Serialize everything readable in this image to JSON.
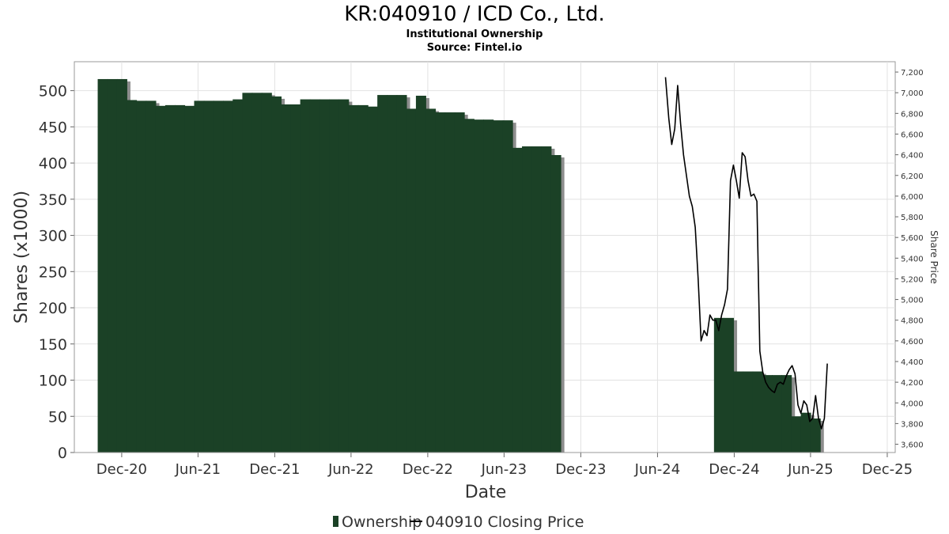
{
  "chart_data": {
    "type": "bar",
    "title": "KR:040910 / ICD Co., Ltd.",
    "subtitle": "Institutional Ownership",
    "source": "Source: Fintel.io",
    "xlabel": "Date",
    "ylabel": "Shares (x1000)",
    "y2label": "Share Price",
    "ylim": [
      0,
      540
    ],
    "y2lim": [
      3520,
      7300
    ],
    "yticks": [
      0,
      50,
      100,
      150,
      200,
      250,
      300,
      350,
      400,
      450,
      500
    ],
    "y2ticks": [
      "3,600",
      "3,800",
      "4,000",
      "4,200",
      "4,400",
      "4,600",
      "4,800",
      "5,000",
      "5,200",
      "5,400",
      "5,600",
      "5,800",
      "6,000",
      "6,200",
      "6,400",
      "6,600",
      "6,800",
      "7,000",
      "7,200"
    ],
    "xlim": [
      "2020-08-10",
      "2025-12-20"
    ],
    "xticks": [
      {
        "date": "2020-12-01",
        "label": "Dec-20"
      },
      {
        "date": "2021-06-01",
        "label": "Jun-21"
      },
      {
        "date": "2021-12-01",
        "label": "Dec-21"
      },
      {
        "date": "2022-06-01",
        "label": "Jun-22"
      },
      {
        "date": "2022-12-01",
        "label": "Dec-22"
      },
      {
        "date": "2023-06-01",
        "label": "Jun-23"
      },
      {
        "date": "2023-12-01",
        "label": "Dec-23"
      },
      {
        "date": "2024-06-01",
        "label": "Jun-24"
      },
      {
        "date": "2024-12-01",
        "label": "Dec-24"
      },
      {
        "date": "2025-06-01",
        "label": "Jun-25"
      },
      {
        "date": "2025-12-01",
        "label": "Dec-25"
      }
    ],
    "grid": true,
    "legend": "bottom",
    "series": [
      {
        "name": "Ownership",
        "type": "bar",
        "color": "#1b4126",
        "data": [
          {
            "date": "2020-10-17",
            "value": 516
          },
          {
            "date": "2020-11-09",
            "value": 516
          },
          {
            "date": "2020-12-02",
            "value": 516
          },
          {
            "date": "2020-12-25",
            "value": 487
          },
          {
            "date": "2021-01-17",
            "value": 486
          },
          {
            "date": "2021-02-09",
            "value": 486
          },
          {
            "date": "2021-03-04",
            "value": 479
          },
          {
            "date": "2021-03-27",
            "value": 480
          },
          {
            "date": "2021-04-19",
            "value": 480
          },
          {
            "date": "2021-05-12",
            "value": 479
          },
          {
            "date": "2021-06-04",
            "value": 486
          },
          {
            "date": "2021-06-27",
            "value": 486
          },
          {
            "date": "2021-07-20",
            "value": 486
          },
          {
            "date": "2021-08-12",
            "value": 486
          },
          {
            "date": "2021-09-04",
            "value": 488
          },
          {
            "date": "2021-09-27",
            "value": 497
          },
          {
            "date": "2021-10-20",
            "value": 497
          },
          {
            "date": "2021-11-12",
            "value": 497
          },
          {
            "date": "2021-12-05",
            "value": 492
          },
          {
            "date": "2021-12-28",
            "value": 481
          },
          {
            "date": "2022-01-20",
            "value": 481
          },
          {
            "date": "2022-02-12",
            "value": 488
          },
          {
            "date": "2022-03-07",
            "value": 488
          },
          {
            "date": "2022-03-30",
            "value": 488
          },
          {
            "date": "2022-04-22",
            "value": 488
          },
          {
            "date": "2022-05-15",
            "value": 488
          },
          {
            "date": "2022-06-07",
            "value": 480
          },
          {
            "date": "2022-06-30",
            "value": 480
          },
          {
            "date": "2022-07-23",
            "value": 478
          },
          {
            "date": "2022-08-15",
            "value": 494
          },
          {
            "date": "2022-09-07",
            "value": 494
          },
          {
            "date": "2022-09-30",
            "value": 494
          },
          {
            "date": "2022-10-23",
            "value": 475
          },
          {
            "date": "2022-11-15",
            "value": 493
          },
          {
            "date": "2022-12-08",
            "value": 475
          },
          {
            "date": "2022-12-31",
            "value": 470
          },
          {
            "date": "2023-01-23",
            "value": 470
          },
          {
            "date": "2023-02-15",
            "value": 470
          },
          {
            "date": "2023-03-10",
            "value": 461
          },
          {
            "date": "2023-04-02",
            "value": 460
          },
          {
            "date": "2023-04-25",
            "value": 460
          },
          {
            "date": "2023-05-18",
            "value": 459
          },
          {
            "date": "2023-06-10",
            "value": 459
          },
          {
            "date": "2023-07-03",
            "value": 421
          },
          {
            "date": "2023-07-26",
            "value": 423
          },
          {
            "date": "2023-08-18",
            "value": 423
          },
          {
            "date": "2023-09-10",
            "value": 423
          },
          {
            "date": "2023-10-03",
            "value": 411
          },
          {
            "date": "2024-10-26",
            "value": 186
          },
          {
            "date": "2024-11-18",
            "value": 186
          },
          {
            "date": "2024-12-11",
            "value": 112
          },
          {
            "date": "2025-01-03",
            "value": 112
          },
          {
            "date": "2025-01-26",
            "value": 112
          },
          {
            "date": "2025-02-18",
            "value": 107
          },
          {
            "date": "2025-03-13",
            "value": 107
          },
          {
            "date": "2025-04-05",
            "value": 107
          },
          {
            "date": "2025-04-28",
            "value": 50
          },
          {
            "date": "2025-05-21",
            "value": 55
          },
          {
            "date": "2025-06-13",
            "value": 47
          }
        ]
      },
      {
        "name": "040910 Closing Price",
        "type": "line",
        "axis": "right",
        "color": "#000000",
        "data": [
          {
            "date": "2024-06-20",
            "value": 7150
          },
          {
            "date": "2024-06-28",
            "value": 6750
          },
          {
            "date": "2024-07-05",
            "value": 6500
          },
          {
            "date": "2024-07-12",
            "value": 6650
          },
          {
            "date": "2024-07-19",
            "value": 7070
          },
          {
            "date": "2024-07-26",
            "value": 6700
          },
          {
            "date": "2024-08-02",
            "value": 6400
          },
          {
            "date": "2024-08-09",
            "value": 6200
          },
          {
            "date": "2024-08-16",
            "value": 6000
          },
          {
            "date": "2024-08-23",
            "value": 5900
          },
          {
            "date": "2024-08-30",
            "value": 5700
          },
          {
            "date": "2024-09-06",
            "value": 5200
          },
          {
            "date": "2024-09-13",
            "value": 4600
          },
          {
            "date": "2024-09-20",
            "value": 4700
          },
          {
            "date": "2024-09-27",
            "value": 4650
          },
          {
            "date": "2024-10-04",
            "value": 4850
          },
          {
            "date": "2024-10-11",
            "value": 4800
          },
          {
            "date": "2024-10-18",
            "value": 4800
          },
          {
            "date": "2024-10-25",
            "value": 4700
          },
          {
            "date": "2024-11-01",
            "value": 4850
          },
          {
            "date": "2024-11-08",
            "value": 4950
          },
          {
            "date": "2024-11-15",
            "value": 5100
          },
          {
            "date": "2024-11-22",
            "value": 6150
          },
          {
            "date": "2024-11-29",
            "value": 6300
          },
          {
            "date": "2024-12-06",
            "value": 6150
          },
          {
            "date": "2024-12-13",
            "value": 5980
          },
          {
            "date": "2024-12-20",
            "value": 6420
          },
          {
            "date": "2024-12-27",
            "value": 6380
          },
          {
            "date": "2025-01-03",
            "value": 6150
          },
          {
            "date": "2025-01-10",
            "value": 6000
          },
          {
            "date": "2025-01-17",
            "value": 6020
          },
          {
            "date": "2025-01-24",
            "value": 5950
          },
          {
            "date": "2025-01-31",
            "value": 4500
          },
          {
            "date": "2025-02-07",
            "value": 4300
          },
          {
            "date": "2025-02-14",
            "value": 4200
          },
          {
            "date": "2025-02-21",
            "value": 4150
          },
          {
            "date": "2025-02-28",
            "value": 4120
          },
          {
            "date": "2025-03-07",
            "value": 4100
          },
          {
            "date": "2025-03-14",
            "value": 4180
          },
          {
            "date": "2025-03-21",
            "value": 4200
          },
          {
            "date": "2025-03-28",
            "value": 4180
          },
          {
            "date": "2025-04-04",
            "value": 4260
          },
          {
            "date": "2025-04-11",
            "value": 4320
          },
          {
            "date": "2025-04-18",
            "value": 4360
          },
          {
            "date": "2025-04-25",
            "value": 4280
          },
          {
            "date": "2025-05-02",
            "value": 3980
          },
          {
            "date": "2025-05-09",
            "value": 3900
          },
          {
            "date": "2025-05-16",
            "value": 4020
          },
          {
            "date": "2025-05-23",
            "value": 3980
          },
          {
            "date": "2025-05-30",
            "value": 3820
          },
          {
            "date": "2025-06-06",
            "value": 3850
          },
          {
            "date": "2025-06-13",
            "value": 4070
          },
          {
            "date": "2025-06-20",
            "value": 3850
          },
          {
            "date": "2025-06-27",
            "value": 3750
          },
          {
            "date": "2025-07-04",
            "value": 3850
          },
          {
            "date": "2025-07-11",
            "value": 4380
          }
        ]
      }
    ]
  }
}
